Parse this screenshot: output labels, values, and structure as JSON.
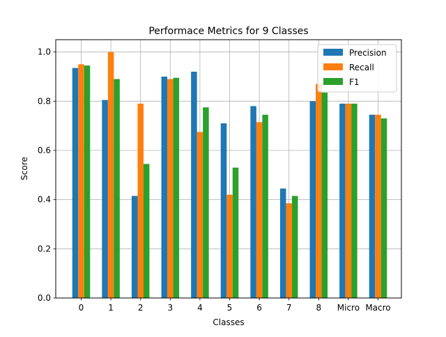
{
  "chart_data": {
    "type": "bar",
    "title": "Performace Metrics for 9 Classes",
    "xlabel": "Classes",
    "ylabel": "Score",
    "categories": [
      "0",
      "1",
      "2",
      "3",
      "4",
      "5",
      "6",
      "7",
      "8",
      "Micro",
      "Macro"
    ],
    "ylim": [
      0.0,
      1.05
    ],
    "yticks": [
      "0.0",
      "0.2",
      "0.4",
      "0.6",
      "0.8",
      "1.0"
    ],
    "grid": true,
    "legend_position": "top-right",
    "series": [
      {
        "name": "Precision",
        "color": "#1f77b4",
        "values": [
          0.935,
          0.805,
          0.415,
          0.9,
          0.92,
          0.71,
          0.78,
          0.445,
          0.8,
          0.79,
          0.745
        ]
      },
      {
        "name": "Recall",
        "color": "#ff7f0e",
        "values": [
          0.95,
          1.0,
          0.79,
          0.89,
          0.675,
          0.42,
          0.715,
          0.385,
          0.87,
          0.79,
          0.745
        ]
      },
      {
        "name": "F1",
        "color": "#2ca02c",
        "values": [
          0.945,
          0.89,
          0.545,
          0.895,
          0.775,
          0.53,
          0.745,
          0.415,
          0.835,
          0.79,
          0.73
        ]
      }
    ]
  }
}
